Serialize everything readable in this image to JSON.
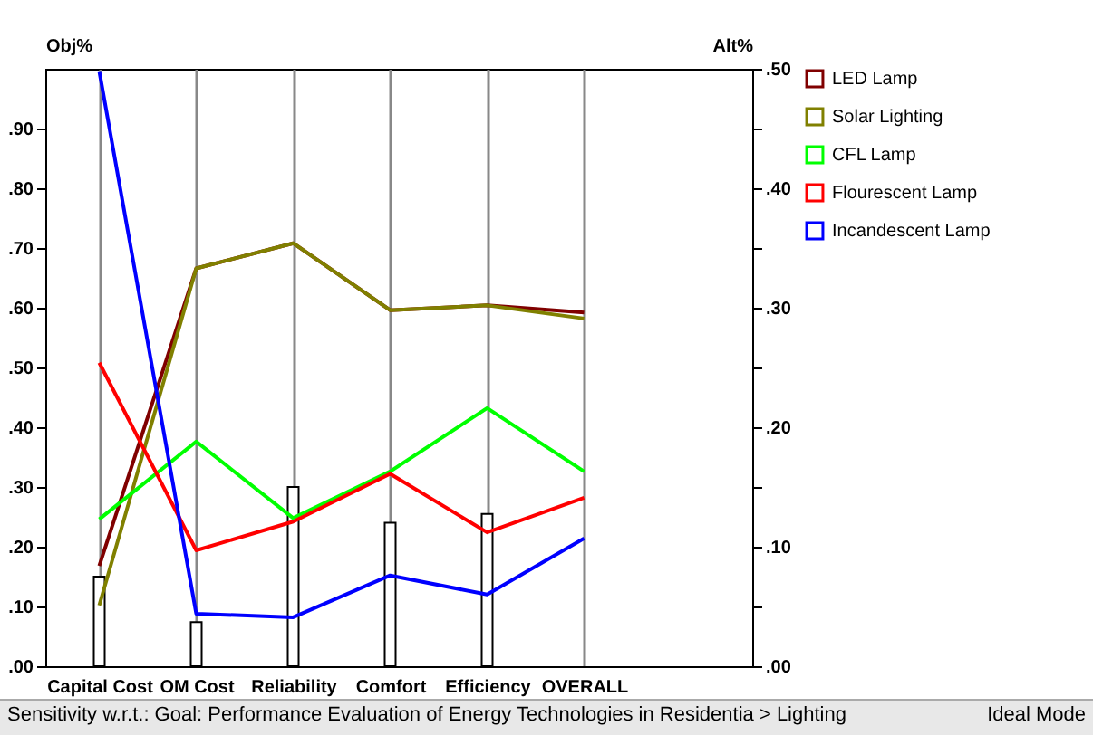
{
  "chart_data": {
    "type": "line",
    "categories": [
      "Capital Cost",
      "OM Cost",
      "Reliability",
      "Comfort",
      "Efficiency",
      "OVERALL"
    ],
    "ylabel": "Obj%",
    "y2label": "Alt%",
    "ylim": [
      0,
      1
    ],
    "yticks": [
      {
        "value": 0,
        "label": ".00"
      },
      {
        "value": 0.1,
        "label": ".10"
      },
      {
        "value": 0.2,
        "label": ".20"
      },
      {
        "value": 0.3,
        "label": ".30"
      },
      {
        "value": 0.4,
        "label": ".40"
      },
      {
        "value": 0.5,
        "label": ".50"
      },
      {
        "value": 0.6,
        "label": ".60"
      },
      {
        "value": 0.7,
        "label": ".70"
      },
      {
        "value": 0.8,
        "label": ".80"
      },
      {
        "value": 0.9,
        "label": ".90"
      }
    ],
    "y2lim": [
      0,
      0.5
    ],
    "y2ticks": [
      {
        "value": 0,
        "label": ".00"
      },
      {
        "value": 0.05,
        "label": null
      },
      {
        "value": 0.1,
        "label": ".10"
      },
      {
        "value": 0.15,
        "label": null
      },
      {
        "value": 0.2,
        "label": ".20"
      },
      {
        "value": 0.25,
        "label": null
      },
      {
        "value": 0.3,
        "label": ".30"
      },
      {
        "value": 0.35,
        "label": null
      },
      {
        "value": 0.4,
        "label": ".40"
      },
      {
        "value": 0.45,
        "label": null
      },
      {
        "value": 0.5,
        "label": ".50"
      }
    ],
    "series": [
      {
        "type": "bar",
        "color": "#ffffff",
        "values": [
          0.15,
          0.074,
          0.3,
          0.24,
          0.255,
          null
        ]
      },
      {
        "name": "LED Lamp",
        "axis": "y2",
        "color": "#800000",
        "values": [
          0.084,
          0.333,
          0.354,
          0.298,
          0.302,
          0.296
        ]
      },
      {
        "name": "Solar Lighting",
        "axis": "y2",
        "color": "#808000",
        "values": [
          0.051,
          0.333,
          0.354,
          0.298,
          0.302,
          0.291
        ]
      },
      {
        "name": "CFL Lamp",
        "axis": "y2",
        "color": "#00ff00",
        "values": [
          0.123,
          0.188,
          0.124,
          0.163,
          0.216,
          0.163
        ]
      },
      {
        "name": "Flourescent Lamp",
        "axis": "y2",
        "color": "#ff0000",
        "values": [
          0.254,
          0.097,
          0.121,
          0.161,
          0.112,
          0.141
        ]
      },
      {
        "name": "Incandescent Lamp",
        "axis": "y2",
        "color": "#0000ff",
        "values": [
          0.498,
          0.044,
          0.041,
          0.076,
          0.06,
          0.107
        ]
      }
    ],
    "grid": "x",
    "legend": "right",
    "annotations": [
      "Sensitivity w.r.t.: Goal: Performance Evaluation of Energy Technologies in Residentia > Lighting",
      "Ideal Mode"
    ]
  }
}
